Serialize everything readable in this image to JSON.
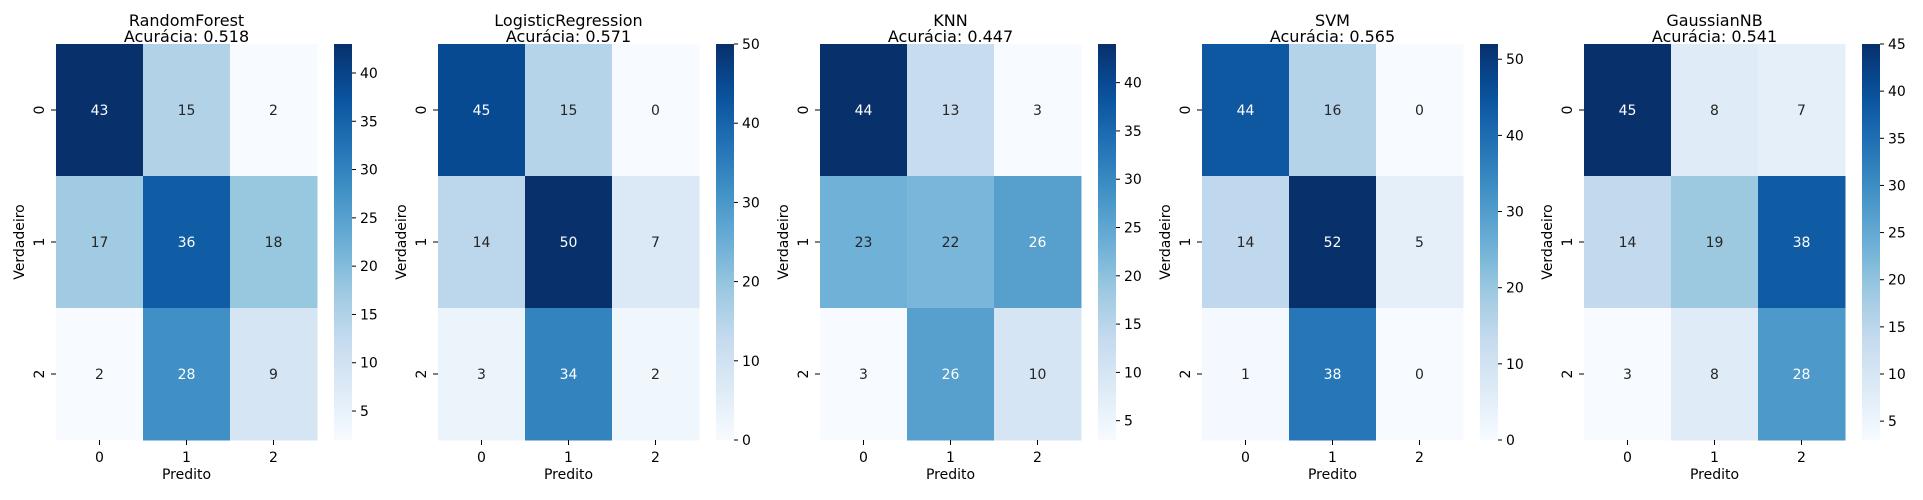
{
  "chart_data": [
    {
      "type": "heatmap",
      "title": [
        "RandomForest",
        "Acurácia: 0.518"
      ],
      "xlabel": "Predito",
      "ylabel": "Verdadeiro",
      "x_categories": [
        "0",
        "1",
        "2"
      ],
      "y_categories": [
        "0",
        "1",
        "2"
      ],
      "values": [
        [
          43,
          15,
          2
        ],
        [
          17,
          36,
          18
        ],
        [
          2,
          28,
          9
        ]
      ],
      "colormap": "Blues",
      "vmin": 2,
      "vmax": 43,
      "colorbar_ticks": [
        5,
        10,
        15,
        20,
        25,
        30,
        35,
        40
      ]
    },
    {
      "type": "heatmap",
      "title": [
        "LogisticRegression",
        "Acurácia: 0.571"
      ],
      "xlabel": "Predito",
      "ylabel": "Verdadeiro",
      "x_categories": [
        "0",
        "1",
        "2"
      ],
      "y_categories": [
        "0",
        "1",
        "2"
      ],
      "values": [
        [
          45,
          15,
          0
        ],
        [
          14,
          50,
          7
        ],
        [
          3,
          34,
          2
        ]
      ],
      "colormap": "Blues",
      "vmin": 0,
      "vmax": 50,
      "colorbar_ticks": [
        0,
        10,
        20,
        30,
        40,
        50
      ]
    },
    {
      "type": "heatmap",
      "title": [
        "KNN",
        "Acurácia: 0.447"
      ],
      "xlabel": "Predito",
      "ylabel": "Verdadeiro",
      "x_categories": [
        "0",
        "1",
        "2"
      ],
      "y_categories": [
        "0",
        "1",
        "2"
      ],
      "values": [
        [
          44,
          13,
          3
        ],
        [
          23,
          22,
          26
        ],
        [
          3,
          26,
          10
        ]
      ],
      "colormap": "Blues",
      "vmin": 3,
      "vmax": 44,
      "colorbar_ticks": [
        5,
        10,
        15,
        20,
        25,
        30,
        35,
        40
      ]
    },
    {
      "type": "heatmap",
      "title": [
        "SVM",
        "Acurácia: 0.565"
      ],
      "xlabel": "Predito",
      "ylabel": "Verdadeiro",
      "x_categories": [
        "0",
        "1",
        "2"
      ],
      "y_categories": [
        "0",
        "1",
        "2"
      ],
      "values": [
        [
          44,
          16,
          0
        ],
        [
          14,
          52,
          5
        ],
        [
          1,
          38,
          0
        ]
      ],
      "colormap": "Blues",
      "vmin": 0,
      "vmax": 52,
      "colorbar_ticks": [
        0,
        10,
        20,
        30,
        40,
        50
      ]
    },
    {
      "type": "heatmap",
      "title": [
        "GaussianNB",
        "Acurácia: 0.541"
      ],
      "xlabel": "Predito",
      "ylabel": "Verdadeiro",
      "x_categories": [
        "0",
        "1",
        "2"
      ],
      "y_categories": [
        "0",
        "1",
        "2"
      ],
      "values": [
        [
          45,
          8,
          7
        ],
        [
          14,
          19,
          38
        ],
        [
          3,
          8,
          28
        ]
      ],
      "colormap": "Blues",
      "vmin": 3,
      "vmax": 45,
      "colorbar_ticks": [
        5,
        10,
        15,
        20,
        25,
        30,
        35,
        40,
        45
      ]
    }
  ]
}
